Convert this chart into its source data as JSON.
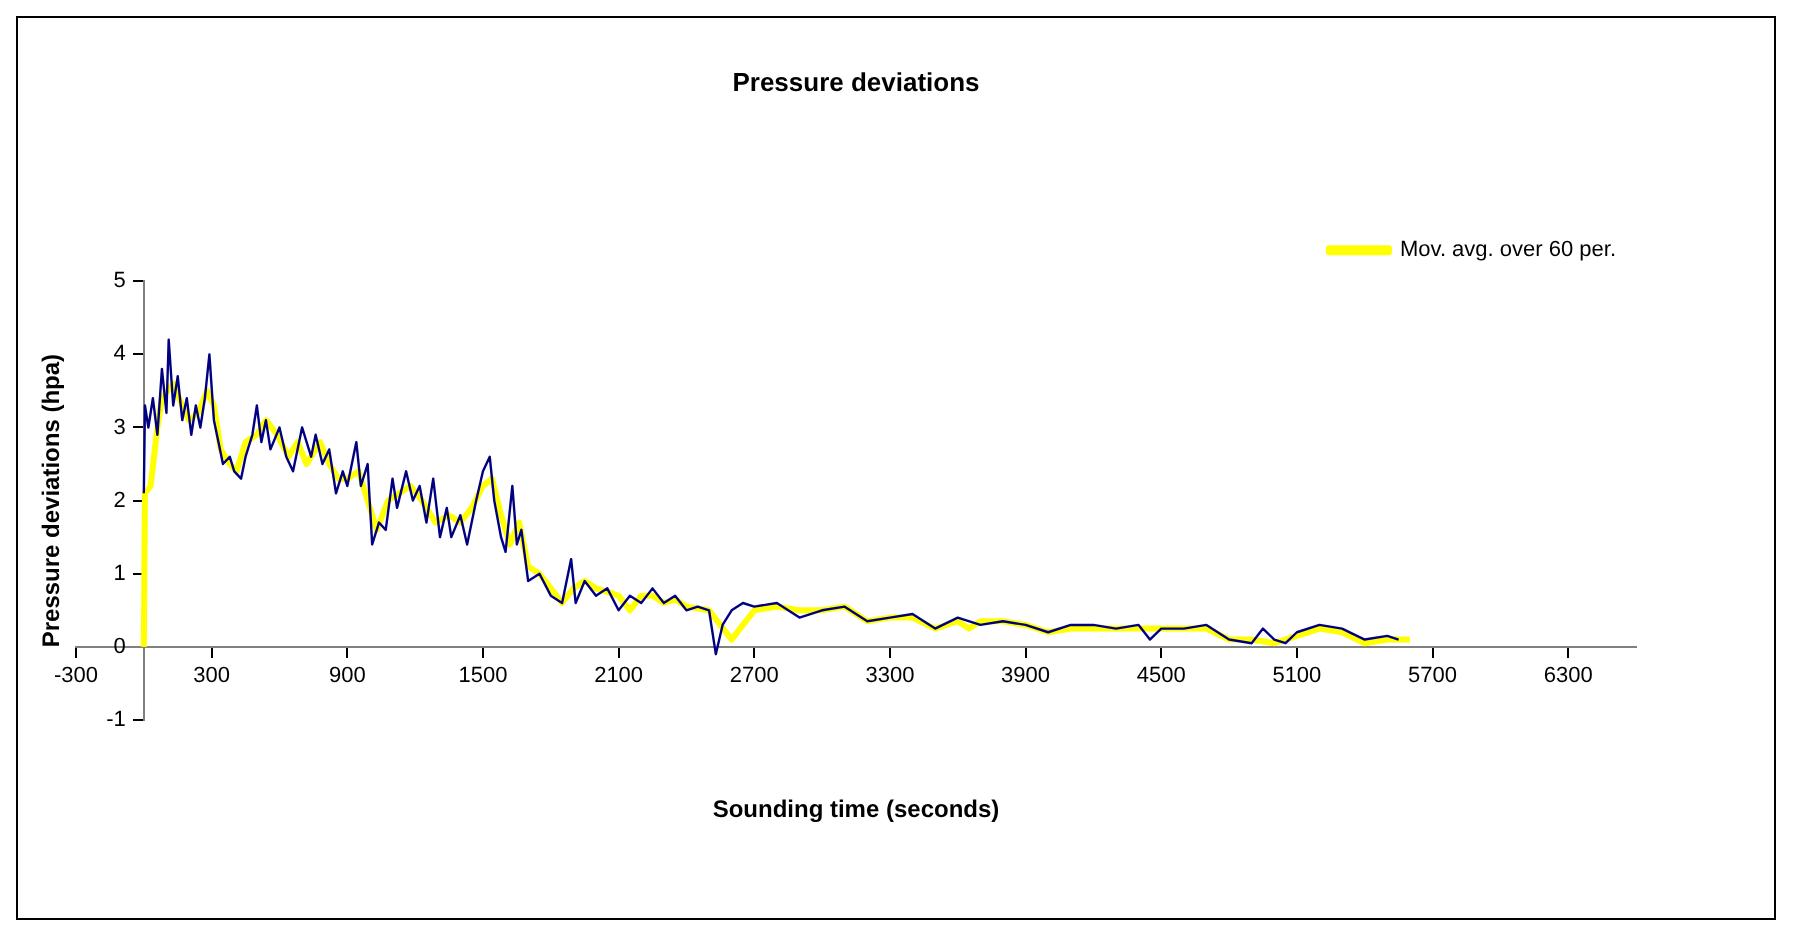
{
  "chart_data": {
    "type": "line",
    "title": "Pressure deviations",
    "xlabel": "Sounding time (seconds)",
    "ylabel": "Pressure deviations (hpa)",
    "xlim": [
      -300,
      6600
    ],
    "xticks": [
      -300,
      300,
      900,
      1500,
      2100,
      2700,
      3300,
      3900,
      4500,
      5100,
      5700,
      6300
    ],
    "ylim": [
      -1,
      5
    ],
    "yticks": [
      -1,
      0,
      1,
      2,
      3,
      4,
      5
    ],
    "grid": false,
    "legend": "top right",
    "marker": "none",
    "line_style": "solid",
    "series": [
      {
        "color": "#000080",
        "x": [
          0,
          5,
          20,
          40,
          60,
          80,
          100,
          110,
          130,
          150,
          170,
          190,
          210,
          230,
          250,
          270,
          290,
          310,
          330,
          350,
          380,
          400,
          430,
          450,
          480,
          500,
          520,
          540,
          560,
          600,
          630,
          660,
          700,
          740,
          760,
          790,
          820,
          850,
          880,
          900,
          940,
          960,
          990,
          1010,
          1040,
          1070,
          1100,
          1120,
          1160,
          1190,
          1220,
          1250,
          1280,
          1310,
          1340,
          1360,
          1400,
          1430,
          1470,
          1500,
          1530,
          1550,
          1580,
          1600,
          1630,
          1650,
          1670,
          1700,
          1750,
          1800,
          1850,
          1890,
          1910,
          1950,
          2000,
          2050,
          2100,
          2150,
          2200,
          2250,
          2300,
          2350,
          2400,
          2450,
          2500,
          2530,
          2560,
          2600,
          2650,
          2700,
          2800,
          2900,
          3000,
          3100,
          3200,
          3300,
          3400,
          3500,
          3600,
          3700,
          3800,
          3900,
          4000,
          4100,
          4200,
          4300,
          4400,
          4450,
          4500,
          4600,
          4700,
          4800,
          4900,
          4950,
          5000,
          5050,
          5100,
          5200,
          5300,
          5400,
          5500,
          5550
        ],
        "values": [
          2.1,
          3.3,
          3.0,
          3.4,
          2.9,
          3.8,
          3.2,
          4.2,
          3.3,
          3.7,
          3.1,
          3.4,
          2.9,
          3.3,
          3.0,
          3.4,
          4.0,
          3.1,
          2.8,
          2.5,
          2.6,
          2.4,
          2.3,
          2.6,
          2.9,
          3.3,
          2.8,
          3.1,
          2.7,
          3.0,
          2.6,
          2.4,
          3.0,
          2.6,
          2.9,
          2.5,
          2.7,
          2.1,
          2.4,
          2.2,
          2.8,
          2.2,
          2.5,
          1.4,
          1.7,
          1.6,
          2.3,
          1.9,
          2.4,
          2.0,
          2.2,
          1.7,
          2.3,
          1.5,
          1.9,
          1.5,
          1.8,
          1.4,
          2.0,
          2.4,
          2.6,
          2.0,
          1.5,
          1.3,
          2.2,
          1.4,
          1.6,
          0.9,
          1.0,
          0.7,
          0.6,
          1.2,
          0.6,
          0.9,
          0.7,
          0.8,
          0.5,
          0.7,
          0.6,
          0.8,
          0.6,
          0.7,
          0.5,
          0.55,
          0.5,
          -0.1,
          0.3,
          0.5,
          0.6,
          0.55,
          0.6,
          0.4,
          0.5,
          0.55,
          0.35,
          0.4,
          0.45,
          0.25,
          0.4,
          0.3,
          0.35,
          0.3,
          0.2,
          0.3,
          0.3,
          0.25,
          0.3,
          0.1,
          0.25,
          0.25,
          0.3,
          0.1,
          0.05,
          0.25,
          0.1,
          0.05,
          0.2,
          0.3,
          0.25,
          0.1,
          0.15,
          0.1
        ]
      },
      {
        "name": "Mov. avg. over 60 per.",
        "color": "#ffff00",
        "x": [
          0,
          5,
          30,
          60,
          80,
          130,
          170,
          200,
          240,
          280,
          310,
          340,
          380,
          410,
          450,
          500,
          540,
          590,
          640,
          680,
          720,
          780,
          820,
          860,
          900,
          950,
          1000,
          1030,
          1080,
          1130,
          1180,
          1230,
          1290,
          1350,
          1400,
          1450,
          1500,
          1540,
          1580,
          1620,
          1660,
          1700,
          1750,
          1800,
          1850,
          1900,
          1950,
          2000,
          2100,
          2150,
          2200,
          2250,
          2300,
          2350,
          2400,
          2500,
          2600,
          2650,
          2700,
          2800,
          2900,
          3000,
          3100,
          3200,
          3300,
          3400,
          3500,
          3600,
          3650,
          3700,
          3800,
          3900,
          4000,
          4100,
          4300,
          4500,
          4700,
          4800,
          4900,
          5000,
          5100,
          5200,
          5300,
          5400,
          5500,
          5600
        ],
        "values": [
          0,
          2.1,
          2.2,
          3.0,
          3.4,
          3.6,
          3.3,
          3.1,
          3.2,
          3.5,
          3.3,
          2.7,
          2.5,
          2.4,
          2.8,
          2.9,
          3.1,
          2.9,
          2.6,
          2.8,
          2.5,
          2.8,
          2.5,
          2.3,
          2.3,
          2.4,
          1.9,
          1.6,
          2.0,
          2.1,
          2.2,
          2.0,
          1.7,
          1.8,
          1.7,
          1.9,
          2.2,
          2.3,
          1.8,
          1.4,
          1.7,
          1.1,
          1.0,
          0.8,
          0.6,
          0.8,
          0.9,
          0.8,
          0.7,
          0.5,
          0.7,
          0.7,
          0.6,
          0.65,
          0.55,
          0.5,
          0.1,
          0.3,
          0.5,
          0.55,
          0.5,
          0.5,
          0.55,
          0.35,
          0.4,
          0.4,
          0.25,
          0.35,
          0.25,
          0.35,
          0.35,
          0.3,
          0.2,
          0.25,
          0.25,
          0.25,
          0.25,
          0.1,
          0.1,
          0.05,
          0.15,
          0.25,
          0.2,
          0.05,
          0.1,
          0.1
        ]
      }
    ]
  }
}
